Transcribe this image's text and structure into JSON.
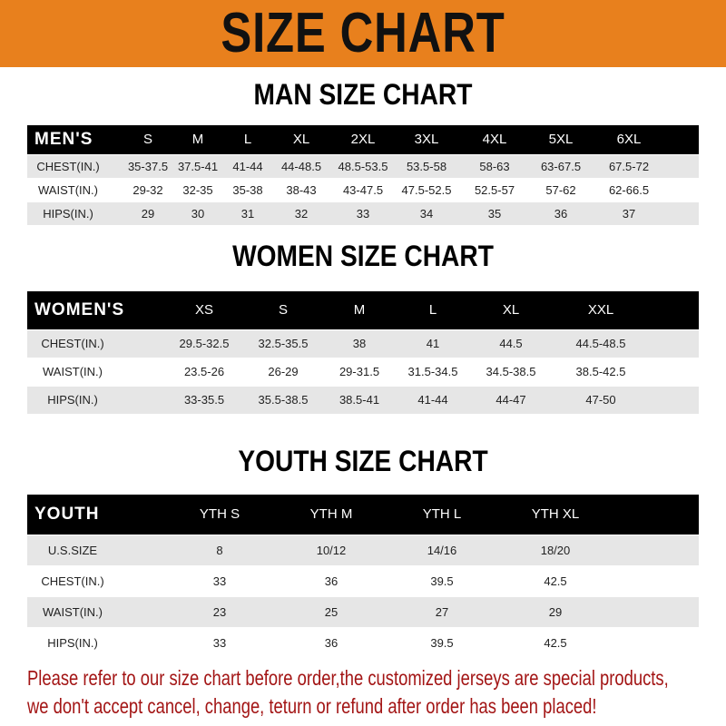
{
  "banner": {
    "title": "SIZE CHART",
    "color": "#e8801d"
  },
  "men": {
    "title": "MAN SIZE CHART",
    "corner": "MEN'S",
    "columns": [
      "S",
      "M",
      "L",
      "XL",
      "2XL",
      "3XL",
      "4XL",
      "5XL",
      "6XL"
    ],
    "rows": [
      {
        "label": "CHEST(IN.)",
        "values": [
          "35-37.5",
          "37.5-41",
          "41-44",
          "44-48.5",
          "48.5-53.5",
          "53.5-58",
          "58-63",
          "63-67.5",
          "67.5-72"
        ]
      },
      {
        "label": "WAIST(IN.)",
        "values": [
          "29-32",
          "32-35",
          "35-38",
          "38-43",
          "43-47.5",
          "47.5-52.5",
          "52.5-57",
          "57-62",
          "62-66.5"
        ]
      },
      {
        "label": "HIPS(IN.)",
        "values": [
          "29",
          "30",
          "31",
          "32",
          "33",
          "34",
          "35",
          "36",
          "37"
        ]
      }
    ]
  },
  "women": {
    "title": "WOMEN SIZE CHART",
    "corner": "WOMEN'S",
    "columns": [
      "XS",
      "S",
      "M",
      "L",
      "XL",
      "XXL"
    ],
    "rows": [
      {
        "label": "CHEST(IN.)",
        "values": [
          "29.5-32.5",
          "32.5-35.5",
          "38",
          "41",
          "44.5",
          "44.5-48.5"
        ]
      },
      {
        "label": "WAIST(IN.)",
        "values": [
          "23.5-26",
          "26-29",
          "29-31.5",
          "31.5-34.5",
          "34.5-38.5",
          "38.5-42.5"
        ]
      },
      {
        "label": "HIPS(IN.)",
        "values": [
          "33-35.5",
          "35.5-38.5",
          "38.5-41",
          "41-44",
          "44-47",
          "47-50"
        ]
      }
    ]
  },
  "youth": {
    "title": "YOUTH SIZE CHART",
    "corner": "YOUTH",
    "columns": [
      "YTH S",
      "YTH M",
      "YTH L",
      "YTH XL"
    ],
    "rows": [
      {
        "label": "U.S.SIZE",
        "values": [
          "8",
          "10/12",
          "14/16",
          "18/20"
        ]
      },
      {
        "label": "CHEST(IN.)",
        "values": [
          "33",
          "36",
          "39.5",
          "42.5"
        ]
      },
      {
        "label": "WAIST(IN.)",
        "values": [
          "23",
          "25",
          "27",
          "29"
        ]
      },
      {
        "label": "HIPS(IN.)",
        "values": [
          "33",
          "36",
          "39.5",
          "42.5"
        ]
      }
    ]
  },
  "footer": {
    "line1": "Please refer to our size chart before order,the customized jerseys are special products,",
    "line2": "we don't accept cancel, change, teturn or refund after order has been placed!",
    "color": "#a31515"
  }
}
